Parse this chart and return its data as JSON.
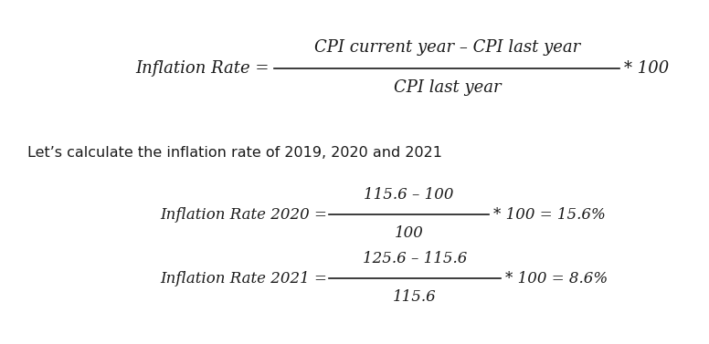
{
  "bg_color": "#ffffff",
  "text_color": "#1a1a1a",
  "fig_width": 7.76,
  "fig_height": 3.77,
  "dpi": 100,
  "formula_label": "Inflation Rate =",
  "formula_numerator": "CPI current year – CPI last year",
  "formula_denominator": "CPI last year",
  "formula_suffix": "* 100",
  "intro_text": "Let’s calculate the inflation rate of 2019, 2020 and 2021",
  "eq2020_label": "Inflation Rate 2020 =",
  "eq2020_numerator": "115.6 – 100",
  "eq2020_denominator": "100",
  "eq2020_suffix": "* 100 = 15.6%",
  "eq2021_label": "Inflation Rate 2021 =",
  "eq2021_numerator": "125.6 – 115.6",
  "eq2021_denominator": "115.6",
  "eq2021_suffix": "* 100 = 8.6%"
}
